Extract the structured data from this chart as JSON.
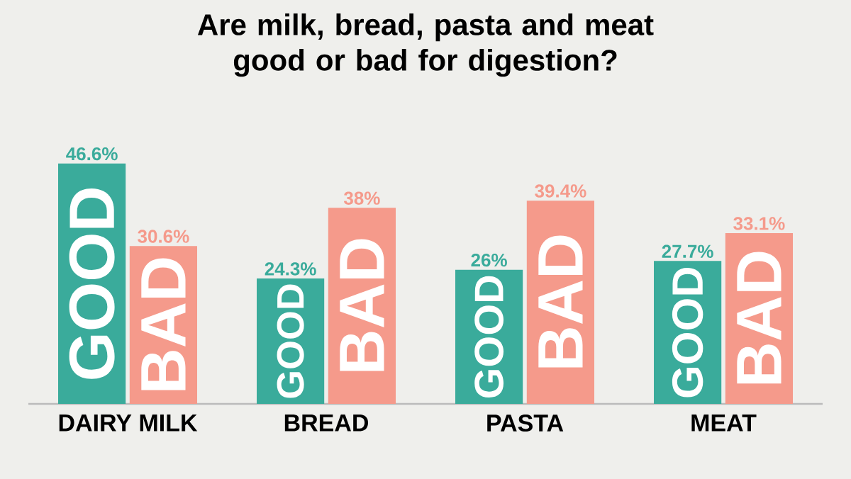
{
  "chart_data": {
    "type": "bar",
    "title": "Are milk, bread, pasta and meat good or bad for digestion?",
    "categories": [
      "DAIRY MILK",
      "BREAD",
      "PASTA",
      "MEAT"
    ],
    "series": [
      {
        "name": "GOOD",
        "color": "#3aab9b",
        "values": [
          46.6,
          24.3,
          26,
          27.7
        ],
        "value_labels": [
          "46.6%",
          "24.3%",
          "26%",
          "27.7%"
        ]
      },
      {
        "name": "BAD",
        "color": "#f59a8b",
        "values": [
          30.6,
          38,
          39.4,
          33.1
        ],
        "value_labels": [
          "30.6%",
          "38%",
          "39.4%",
          "33.1%"
        ]
      }
    ]
  }
}
